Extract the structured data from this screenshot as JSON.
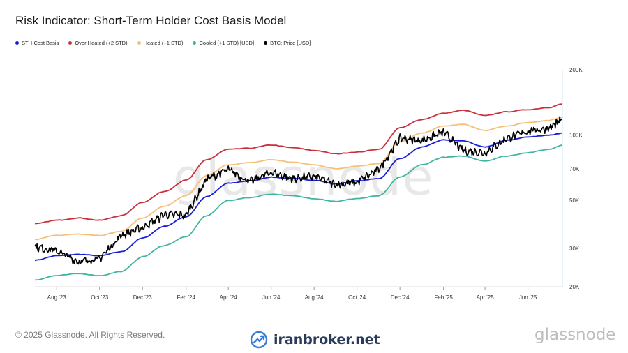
{
  "title": "Risk Indicator: Short-Term Holder Cost Basis Model",
  "footer": {
    "copyright": "© 2025 Glassnode. All Rights Reserved.",
    "brand": "iranbroker.net",
    "logo": "glassnode",
    "watermark": "glassnode"
  },
  "chart_data": {
    "type": "line",
    "title": "Risk Indicator: Short-Term Holder Cost Basis Model",
    "y_scale": "log",
    "ylim": [
      20000,
      200000
    ],
    "y_ticks": [
      {
        "value": 20000,
        "label": "20K"
      },
      {
        "value": 30000,
        "label": "30K"
      },
      {
        "value": 50000,
        "label": "50K"
      },
      {
        "value": 70000,
        "label": "70K"
      },
      {
        "value": 100000,
        "label": "100K"
      },
      {
        "value": 200000,
        "label": "200K"
      }
    ],
    "x_range": [
      "2023-07-01",
      "2025-07-20"
    ],
    "x_ticks": [
      {
        "date": "2023-08-01",
        "label": "Aug '23"
      },
      {
        "date": "2023-10-01",
        "label": "Oct '23"
      },
      {
        "date": "2023-12-01",
        "label": "Dec '23"
      },
      {
        "date": "2024-02-01",
        "label": "Feb '24"
      },
      {
        "date": "2024-04-01",
        "label": "Apr '24"
      },
      {
        "date": "2024-06-01",
        "label": "Jun '24"
      },
      {
        "date": "2024-08-01",
        "label": "Aug '24"
      },
      {
        "date": "2024-10-01",
        "label": "Oct '24"
      },
      {
        "date": "2024-12-01",
        "label": "Dec '24"
      },
      {
        "date": "2025-02-01",
        "label": "Feb '25"
      },
      {
        "date": "2025-04-01",
        "label": "Apr '25"
      },
      {
        "date": "2025-06-01",
        "label": "Jun '25"
      }
    ],
    "legend_position": "top-left",
    "grid": false,
    "x": [
      "2023-07-01",
      "2023-08-01",
      "2023-09-01",
      "2023-10-01",
      "2023-11-01",
      "2023-12-01",
      "2024-01-01",
      "2024-02-01",
      "2024-03-01",
      "2024-04-01",
      "2024-05-01",
      "2024-06-01",
      "2024-07-01",
      "2024-08-01",
      "2024-09-01",
      "2024-10-01",
      "2024-11-01",
      "2024-12-01",
      "2025-01-01",
      "2025-02-01",
      "2025-03-01",
      "2025-04-01",
      "2025-05-01",
      "2025-06-01",
      "2025-07-01",
      "2025-07-20"
    ],
    "series": [
      {
        "name": "STH-Cost Basis",
        "color": "#1a1fd6",
        "values": [
          26500,
          27800,
          28200,
          27800,
          29000,
          33500,
          38000,
          42000,
          52000,
          60000,
          61500,
          64000,
          63000,
          62000,
          59500,
          61500,
          63000,
          78000,
          88000,
          95000,
          94000,
          88000,
          94500,
          98000,
          100000,
          102000
        ]
      },
      {
        "name": "Over Heated (+2 STD)",
        "color": "#c9303e",
        "values": [
          39000,
          40500,
          41500,
          40500,
          42500,
          49000,
          55000,
          62000,
          77000,
          86000,
          87000,
          90000,
          87500,
          85000,
          82000,
          83500,
          86000,
          108000,
          118000,
          126000,
          130000,
          123000,
          128000,
          131000,
          134000,
          139000
        ]
      },
      {
        "name": "Heated (+1 STD)",
        "color": "#f4c07a",
        "values": [
          33000,
          34500,
          35000,
          34500,
          36000,
          41500,
          47000,
          52500,
          65000,
          73000,
          74500,
          77000,
          75000,
          73000,
          70000,
          72000,
          74000,
          93000,
          102000,
          110000,
          112000,
          105000,
          110000,
          114000,
          117000,
          121000
        ]
      },
      {
        "name": "Cooled (+1 STD) [USD]",
        "color": "#3fb5a3",
        "values": [
          21500,
          22500,
          23000,
          22500,
          23500,
          27500,
          31000,
          34000,
          42500,
          50000,
          51500,
          53500,
          52500,
          51000,
          49500,
          51000,
          52500,
          64000,
          73000,
          79000,
          80000,
          76000,
          80000,
          83000,
          86000,
          90000
        ]
      },
      {
        "name": "BTC: Price [USD]",
        "color": "#000000",
        "values": [
          30500,
          29300,
          26000,
          27000,
          34500,
          37500,
          43000,
          42800,
          62500,
          69500,
          60800,
          67500,
          62800,
          64600,
          59000,
          60800,
          69500,
          97000,
          94000,
          103500,
          84500,
          83000,
          96000,
          104500,
          107500,
          118000
        ]
      }
    ]
  }
}
